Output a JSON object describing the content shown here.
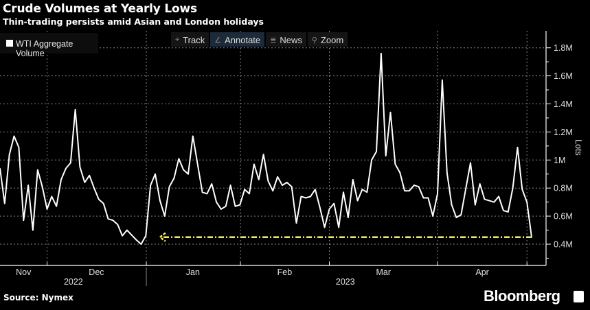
{
  "header": {
    "title": "Crude Volumes at Yearly Lows",
    "subtitle": "Thin-trading persists amid Asian and London holidays"
  },
  "toolbar": {
    "items": [
      {
        "label": "Track",
        "icon": "crosshair-icon"
      },
      {
        "label": "Annotate",
        "icon": "pencil-icon"
      },
      {
        "label": "News",
        "icon": "list-icon"
      },
      {
        "label": "Zoom",
        "icon": "magnifier-icon"
      }
    ],
    "active": "Annotate"
  },
  "footer": {
    "source": "Source: Nymex",
    "brand": "Bloomberg"
  },
  "colors": {
    "line": "#ffffff",
    "annotation": "#f5e85a",
    "grid": "#8a8a8a",
    "background": "#000000"
  },
  "chart_data": {
    "type": "line",
    "title": "Crude Volumes at Yearly Lows",
    "subtitle": "Thin-trading persists amid Asian and London holidays",
    "ylabel": "Lots",
    "ylim": [
      0.3,
      1.9
    ],
    "yticks": [
      0.4,
      0.6,
      0.8,
      1.0,
      1.2,
      1.4,
      1.6,
      1.8
    ],
    "ytick_labels": [
      "0.4M",
      "0.6M",
      "0.8M",
      "1M",
      "1.2M",
      "1.4M",
      "1.6M",
      "1.8M"
    ],
    "x_month_labels": [
      {
        "label": "Nov",
        "day": 5
      },
      {
        "label": "Dec",
        "day": 20.5
      },
      {
        "label": "Jan",
        "day": 41
      },
      {
        "label": "Feb",
        "day": 60.5
      },
      {
        "label": "Mar",
        "day": 81.5
      },
      {
        "label": "Apr",
        "day": 102.5
      }
    ],
    "x_year_labels": [
      {
        "label": "2022",
        "day": 15.6
      },
      {
        "label": "2023",
        "day": 73.4
      }
    ],
    "xlim": [
      0,
      116
    ],
    "grid": true,
    "legend": {
      "position": "top-left",
      "entries": [
        "WTI Aggregate Volume"
      ]
    },
    "series": [
      {
        "name": "WTI Aggregate Volume",
        "unit": "M lots",
        "x": [
          0,
          1,
          2,
          3,
          4,
          5,
          6,
          7,
          8,
          9,
          10,
          11,
          12,
          13,
          14,
          15,
          16,
          17,
          18,
          19,
          20,
          21,
          22,
          23,
          24,
          25,
          26,
          27,
          29,
          30,
          31,
          32,
          33,
          34,
          35,
          36,
          37,
          38,
          39,
          40,
          41,
          42,
          43,
          44,
          45,
          46,
          47,
          48,
          49,
          50,
          51,
          52,
          53,
          54,
          55,
          56,
          57,
          58,
          59,
          60,
          61,
          62,
          63,
          64,
          65,
          66,
          67,
          68,
          69,
          70,
          71,
          72,
          73,
          74,
          75,
          76,
          77,
          78,
          79,
          80,
          81,
          82,
          83,
          84,
          85,
          86,
          87,
          88,
          89,
          90,
          91,
          92,
          93,
          94,
          95,
          96,
          97,
          98,
          100,
          101,
          102,
          103,
          104,
          105,
          106,
          107,
          108,
          109,
          110,
          111,
          112,
          113
        ],
        "values": [
          0.94,
          0.69,
          1.04,
          1.17,
          1.09,
          0.57,
          0.82,
          0.5,
          0.93,
          0.81,
          0.65,
          0.74,
          0.67,
          0.86,
          0.94,
          0.98,
          1.36,
          0.95,
          0.84,
          0.89,
          0.8,
          0.72,
          0.69,
          0.58,
          0.57,
          0.54,
          0.46,
          0.5,
          0.43,
          0.4,
          0.46,
          0.82,
          0.9,
          0.71,
          0.6,
          0.81,
          0.87,
          1.01,
          0.93,
          0.9,
          1.17,
          0.97,
          0.77,
          0.76,
          0.83,
          0.7,
          0.65,
          0.67,
          0.82,
          0.67,
          0.68,
          0.79,
          0.76,
          0.97,
          0.86,
          1.04,
          0.85,
          0.78,
          0.88,
          0.82,
          0.84,
          0.81,
          0.55,
          0.74,
          0.73,
          0.74,
          0.79,
          0.66,
          0.52,
          0.65,
          0.69,
          0.52,
          0.77,
          0.59,
          0.86,
          0.71,
          0.79,
          0.77,
          1.0,
          1.06,
          1.76,
          1.03,
          1.34,
          0.97,
          0.91,
          0.78,
          0.78,
          0.82,
          0.81,
          0.73,
          0.73,
          0.6,
          0.76,
          1.57,
          0.91,
          0.68,
          0.59,
          0.61,
          0.98,
          0.68,
          0.83,
          0.72,
          0.71,
          0.7,
          0.74,
          0.64,
          0.63,
          0.8,
          1.09,
          0.79,
          0.7,
          0.45
        ]
      }
    ],
    "annotations": [
      {
        "type": "horizontal-arrow",
        "y": 0.45,
        "x_from": 113,
        "x_to": 34,
        "color": "#f5e85a",
        "style": "dash-dot"
      }
    ]
  }
}
